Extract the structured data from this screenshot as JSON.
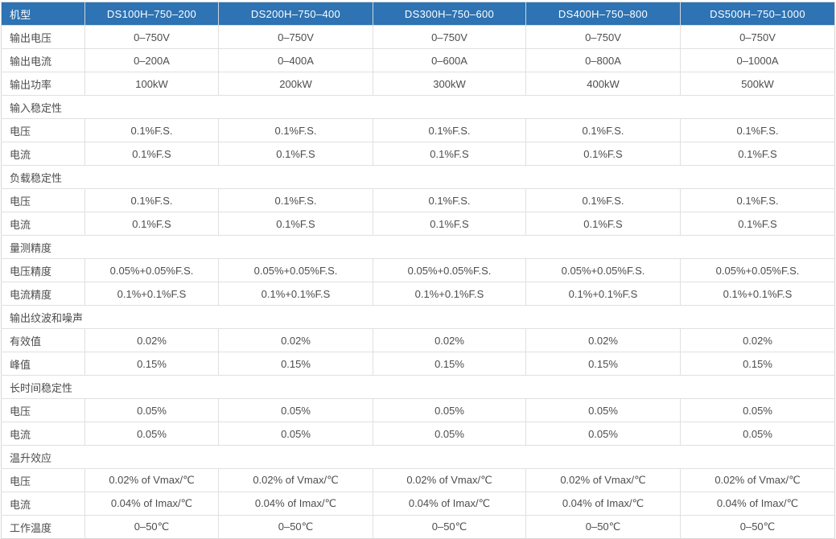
{
  "colors": {
    "header_bg": "#2e73b3",
    "header_text": "#ffffff",
    "border": "#e0e0e0",
    "body_text": "#4d4d4d"
  },
  "table": {
    "header": {
      "label": "机型",
      "models": [
        "DS100H–750–200",
        "DS200H–750–400",
        "DS300H–750–600",
        "DS400H–750–800",
        "DS500H–750–1000"
      ]
    },
    "rows": [
      {
        "type": "data",
        "label": "输出电压",
        "values": [
          "0–750V",
          "0–750V",
          "0–750V",
          "0–750V",
          "0–750V"
        ]
      },
      {
        "type": "data",
        "label": "输出电流",
        "values": [
          "0–200A",
          "0–400A",
          "0–600A",
          "0–800A",
          "0–1000A"
        ]
      },
      {
        "type": "data",
        "label": "输出功率",
        "values": [
          "100kW",
          "200kW",
          "300kW",
          "400kW",
          "500kW"
        ]
      },
      {
        "type": "section",
        "label": "输入稳定性"
      },
      {
        "type": "data",
        "label": "电压",
        "values": [
          "0.1%F.S.",
          "0.1%F.S.",
          "0.1%F.S.",
          "0.1%F.S.",
          "0.1%F.S."
        ]
      },
      {
        "type": "data",
        "label": "电流",
        "values": [
          "0.1%F.S",
          "0.1%F.S",
          "0.1%F.S",
          "0.1%F.S",
          "0.1%F.S"
        ]
      },
      {
        "type": "section",
        "label": "负载稳定性"
      },
      {
        "type": "data",
        "label": "电压",
        "values": [
          "0.1%F.S.",
          "0.1%F.S.",
          "0.1%F.S.",
          "0.1%F.S.",
          "0.1%F.S."
        ]
      },
      {
        "type": "data",
        "label": "电流",
        "values": [
          "0.1%F.S",
          "0.1%F.S",
          "0.1%F.S",
          "0.1%F.S",
          "0.1%F.S"
        ]
      },
      {
        "type": "section",
        "label": "量测精度"
      },
      {
        "type": "data",
        "label": "电压精度",
        "values": [
          "0.05%+0.05%F.S.",
          "0.05%+0.05%F.S.",
          "0.05%+0.05%F.S.",
          "0.05%+0.05%F.S.",
          "0.05%+0.05%F.S."
        ]
      },
      {
        "type": "data",
        "label": "电流精度",
        "values": [
          "0.1%+0.1%F.S",
          "0.1%+0.1%F.S",
          "0.1%+0.1%F.S",
          "0.1%+0.1%F.S",
          "0.1%+0.1%F.S"
        ]
      },
      {
        "type": "section",
        "label": "输出纹波和噪声"
      },
      {
        "type": "data",
        "label": "有效值",
        "values": [
          "0.02%",
          "0.02%",
          "0.02%",
          "0.02%",
          "0.02%"
        ]
      },
      {
        "type": "data",
        "label": "峰值",
        "values": [
          "0.15%",
          "0.15%",
          "0.15%",
          "0.15%",
          "0.15%"
        ]
      },
      {
        "type": "section",
        "label": "长时间稳定性"
      },
      {
        "type": "data",
        "label": "电压",
        "values": [
          "0.05%",
          "0.05%",
          "0.05%",
          "0.05%",
          "0.05%"
        ]
      },
      {
        "type": "data",
        "label": "电流",
        "values": [
          "0.05%",
          "0.05%",
          "0.05%",
          "0.05%",
          "0.05%"
        ]
      },
      {
        "type": "section",
        "label": "温升效应"
      },
      {
        "type": "data",
        "label": "电压",
        "values": [
          "0.02% of  Vmax/℃",
          "0.02% of  Vmax/℃",
          "0.02% of  Vmax/℃",
          "0.02% of  Vmax/℃",
          "0.02% of  Vmax/℃"
        ]
      },
      {
        "type": "data",
        "label": "电流",
        "values": [
          "0.04% of  Imax/℃",
          "0.04% of  Imax/℃",
          "0.04% of  Imax/℃",
          "0.04% of  Imax/℃",
          "0.04% of  Imax/℃"
        ]
      },
      {
        "type": "data",
        "label": "工作温度",
        "values": [
          "0–50℃",
          "0–50℃",
          "0–50℃",
          "0–50℃",
          "0–50℃"
        ]
      }
    ]
  }
}
